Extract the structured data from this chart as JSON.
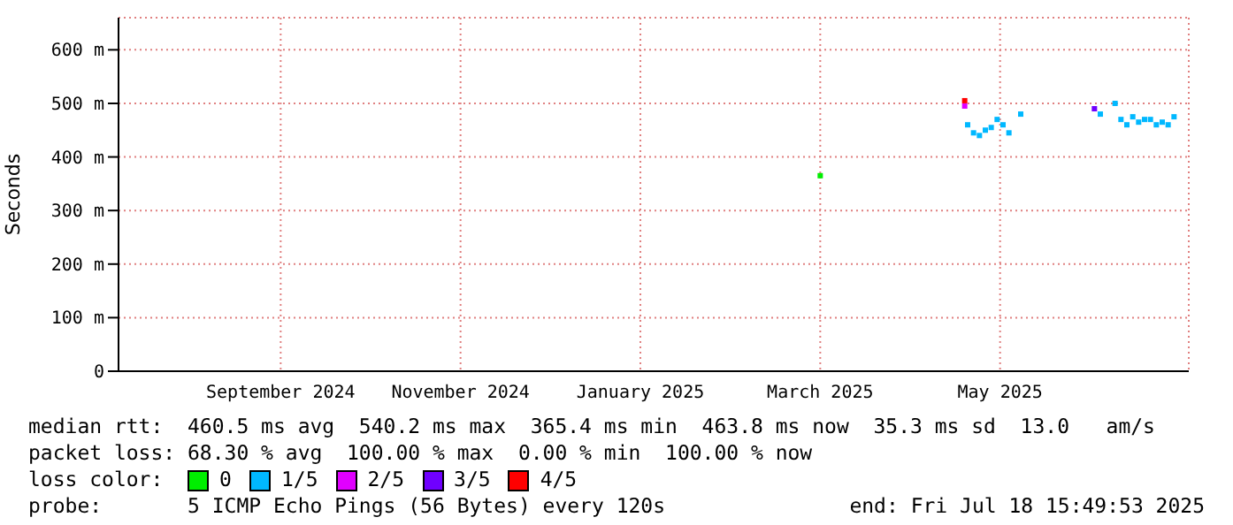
{
  "chart_data": {
    "type": "scatter",
    "ylabel": "Seconds",
    "legend_title": "loss color:",
    "legend": "bottom",
    "grid": true,
    "marker": "square",
    "xlim": [
      "2024-07-20",
      "2025-07-18"
    ],
    "xticks": [
      {
        "value": "2024-09-13",
        "label": "September 2024"
      },
      {
        "value": "2024-11-13",
        "label": "November 2024"
      },
      {
        "value": "2025-01-13",
        "label": "January 2025"
      },
      {
        "value": "2025-03-15",
        "label": "March 2025"
      },
      {
        "value": "2025-05-15",
        "label": "May 2025"
      }
    ],
    "ylim": [
      0,
      660
    ],
    "yticks": [
      0,
      {
        "value": 100,
        "label": "100 m"
      },
      {
        "value": 200,
        "label": "200 m"
      },
      {
        "value": 300,
        "label": "300 m"
      },
      {
        "value": 400,
        "label": "400 m"
      },
      {
        "value": 500,
        "label": "500 m"
      },
      {
        "value": 600,
        "label": "600 m"
      }
    ],
    "series": [
      {
        "name": "0",
        "color": "#00ee00",
        "x": [
          "2025-03-15"
        ],
        "values": [
          365
        ]
      },
      {
        "name": "1/5",
        "color": "#00b8ff",
        "x": [
          "2025-05-04",
          "2025-05-06",
          "2025-05-08",
          "2025-05-10",
          "2025-05-12",
          "2025-05-14",
          "2025-05-16",
          "2025-05-18",
          "2025-05-22",
          "2025-06-18",
          "2025-06-23",
          "2025-06-25",
          "2025-06-27",
          "2025-06-29",
          "2025-07-01",
          "2025-07-03",
          "2025-07-05",
          "2025-07-07",
          "2025-07-09",
          "2025-07-11",
          "2025-07-13"
        ],
        "values": [
          460,
          445,
          440,
          450,
          455,
          470,
          460,
          445,
          480,
          480,
          500,
          470,
          460,
          475,
          465,
          470,
          470,
          460,
          465,
          460,
          475
        ]
      },
      {
        "name": "2/5",
        "color": "#e000ff",
        "x": [
          "2025-05-03"
        ],
        "values": [
          495
        ]
      },
      {
        "name": "3/5",
        "color": "#7000ff",
        "x": [
          "2025-06-16"
        ],
        "values": [
          490
        ]
      },
      {
        "name": "4/5",
        "color": "#ff0000",
        "x": [
          "2025-05-03"
        ],
        "values": [
          505
        ]
      }
    ],
    "annotations": [
      "median rtt:  460.5 ms avg  540.2 ms max  365.4 ms min  463.8 ms now  35.3 ms sd  13.0   am/s",
      "packet loss: 68.30 % avg  100.00 % max  0.00 % min  100.00 % now",
      "probe:       5 ICMP Echo Pings (56 Bytes) every 120s",
      "end: Fri Jul 18 15:49:53 2025"
    ]
  }
}
